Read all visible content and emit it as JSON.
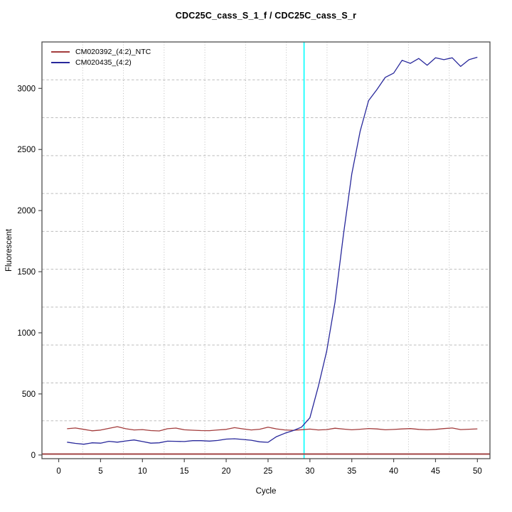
{
  "chart_data": {
    "type": "line",
    "title": "CDC25C_cass_S_1_f / CDC25C_cass_S_r",
    "xlabel": "Cycle",
    "ylabel": "Fluorescent",
    "xlim": [
      -2,
      51.5
    ],
    "ylim": [
      -30,
      3380
    ],
    "x_ticks": [
      0,
      5,
      10,
      15,
      20,
      25,
      30,
      35,
      40,
      45,
      50
    ],
    "y_ticks": [
      0,
      500,
      1000,
      1500,
      2000,
      2500,
      3000
    ],
    "grid": {
      "divisions": 11,
      "color": "#bdbdbd",
      "horizontal_style": "dashed",
      "vertical_style": "dotted"
    },
    "legend_position": "top-left-inside",
    "x": [
      1,
      2,
      3,
      4,
      5,
      6,
      7,
      8,
      9,
      10,
      11,
      12,
      13,
      14,
      15,
      16,
      17,
      18,
      19,
      20,
      21,
      22,
      23,
      24,
      25,
      26,
      27,
      28,
      29,
      30,
      31,
      32,
      33,
      34,
      35,
      36,
      37,
      38,
      39,
      40,
      41,
      42,
      43,
      44,
      45,
      46,
      47,
      48,
      49,
      50
    ],
    "series": [
      {
        "name": "CM020392_(4:2)_NTC",
        "color": "#a33c3c",
        "values": [
          215,
          221,
          210,
          198,
          204,
          218,
          232,
          215,
          205,
          208,
          200,
          197,
          215,
          220,
          206,
          203,
          200,
          199,
          205,
          210,
          224,
          214,
          205,
          211,
          228,
          214,
          205,
          202,
          207,
          212,
          205,
          208,
          219,
          212,
          206,
          211,
          217,
          213,
          206,
          209,
          213,
          216,
          210,
          206,
          210,
          216,
          221,
          208,
          211,
          214
        ]
      },
      {
        "name": "CM020435_(4:2)",
        "color": "#28289b",
        "values": [
          105,
          95,
          88,
          100,
          97,
          112,
          105,
          115,
          123,
          110,
          97,
          100,
          113,
          112,
          110,
          117,
          117,
          114,
          119,
          130,
          133,
          127,
          121,
          108,
          104,
          150,
          178,
          200,
          228,
          305,
          560,
          850,
          1250,
          1800,
          2300,
          2650,
          2900,
          2990,
          3090,
          3125,
          3230,
          3205,
          3245,
          3190,
          3250,
          3235,
          3250,
          3180,
          3235,
          3255
        ]
      }
    ],
    "threshold_line": {
      "value": 8,
      "color": "#a24444"
    },
    "crossing_line": {
      "cycle": 29.3,
      "color": "#00ffff"
    }
  }
}
